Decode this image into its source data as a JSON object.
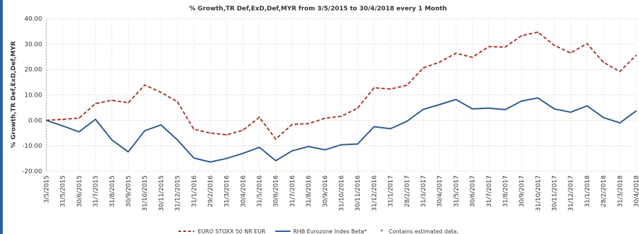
{
  "chart_data": {
    "type": "line",
    "title": "% Growth,TR Def,ExD,Def,MYR from 3/5/2015 to 30/4/2018 every 1 Month",
    "xlabel": "",
    "ylabel": "% Growth,TR Def,ExD,Def,MYR",
    "ylim": [
      -20,
      40
    ],
    "yticks": [
      "40.00",
      "30.00",
      "20.00",
      "10.00",
      "0.00",
      "-10.00",
      "-20.00"
    ],
    "grid": true,
    "legend_position": "bottom",
    "x": [
      "3/5/2015",
      "31/5/2015",
      "30/6/2015",
      "31/7/2015",
      "31/8/2015",
      "30/9/2015",
      "31/10/2015",
      "30/11/2015",
      "31/12/2015",
      "31/1/2016",
      "29/2/2016",
      "31/3/2016",
      "30/4/2016",
      "31/5/2016",
      "30/6/2016",
      "31/7/2016",
      "31/8/2016",
      "30/9/2016",
      "31/10/2016",
      "30/11/2016",
      "31/12/2016",
      "31/1/2017",
      "28/2/2017",
      "31/3/2017",
      "30/4/2017",
      "31/5/2017",
      "30/6/2017",
      "31/7/2017",
      "31/8/2017",
      "30/9/2017",
      "31/10/2017",
      "30/11/2017",
      "31/12/2017",
      "31/1/2018",
      "28/2/2018",
      "31/3/2018",
      "30/4/2018"
    ],
    "series": [
      {
        "name": "EURO STOXX 50 NR EUR",
        "color": "#a83a32",
        "dashed": true,
        "values": [
          0.0,
          0.4,
          0.9,
          6.6,
          7.9,
          6.9,
          13.9,
          11.0,
          7.3,
          -3.5,
          -5.0,
          -5.7,
          -3.9,
          1.2,
          -7.4,
          -1.6,
          -1.3,
          0.8,
          1.6,
          4.8,
          12.8,
          12.3,
          13.8,
          20.6,
          22.9,
          26.4,
          24.8,
          29.0,
          28.8,
          33.3,
          34.7,
          29.5,
          26.5,
          30.2,
          22.8,
          19.2,
          25.6
        ]
      },
      {
        "name": "RHB Eurozone Index Beta*",
        "color": "#2f5a8f",
        "dashed": false,
        "values": [
          0.0,
          -2.2,
          -4.5,
          0.4,
          -7.7,
          -12.4,
          -4.1,
          -1.8,
          -7.7,
          -14.8,
          -16.4,
          -15.0,
          -13.0,
          -10.6,
          -15.9,
          -12.0,
          -10.3,
          -11.6,
          -9.6,
          -9.3,
          -2.5,
          -3.3,
          -0.4,
          4.3,
          6.2,
          8.2,
          4.5,
          4.8,
          4.2,
          7.6,
          8.8,
          4.5,
          3.2,
          5.7,
          1.1,
          -1.0,
          3.7
        ]
      }
    ],
    "legend": {
      "series1_label": "EURO STOXX 50 NR EUR",
      "series2_label": "RHB Eurozone Index Beta*",
      "note_symbol": "*",
      "note_text": "Contains estimated data."
    }
  }
}
